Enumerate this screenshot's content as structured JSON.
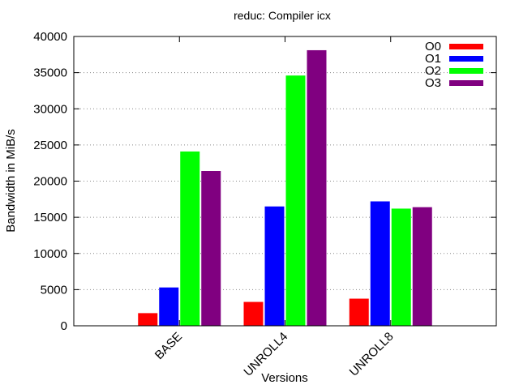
{
  "chart_data": {
    "type": "bar",
    "title": "reduc: Compiler icx",
    "xlabel": "Versions",
    "ylabel": "Bandwidth in MiB/s",
    "categories": [
      "BASE",
      "UNROLL4",
      "UNROLL8"
    ],
    "ylim": [
      0,
      40000
    ],
    "yticks": [
      0,
      5000,
      10000,
      15000,
      20000,
      25000,
      30000,
      35000,
      40000
    ],
    "grid": "horizontal dotted",
    "legend_position": "top-right",
    "series": [
      {
        "name": "O0",
        "color": "#ff0000",
        "values": [
          1750,
          3300,
          3750
        ]
      },
      {
        "name": "O1",
        "color": "#0000ff",
        "values": [
          5300,
          16500,
          17200
        ]
      },
      {
        "name": "O2",
        "color": "#00ff00",
        "values": [
          24100,
          34600,
          16200
        ]
      },
      {
        "name": "O3",
        "color": "#800080",
        "values": [
          21400,
          38100,
          16400
        ]
      }
    ]
  }
}
